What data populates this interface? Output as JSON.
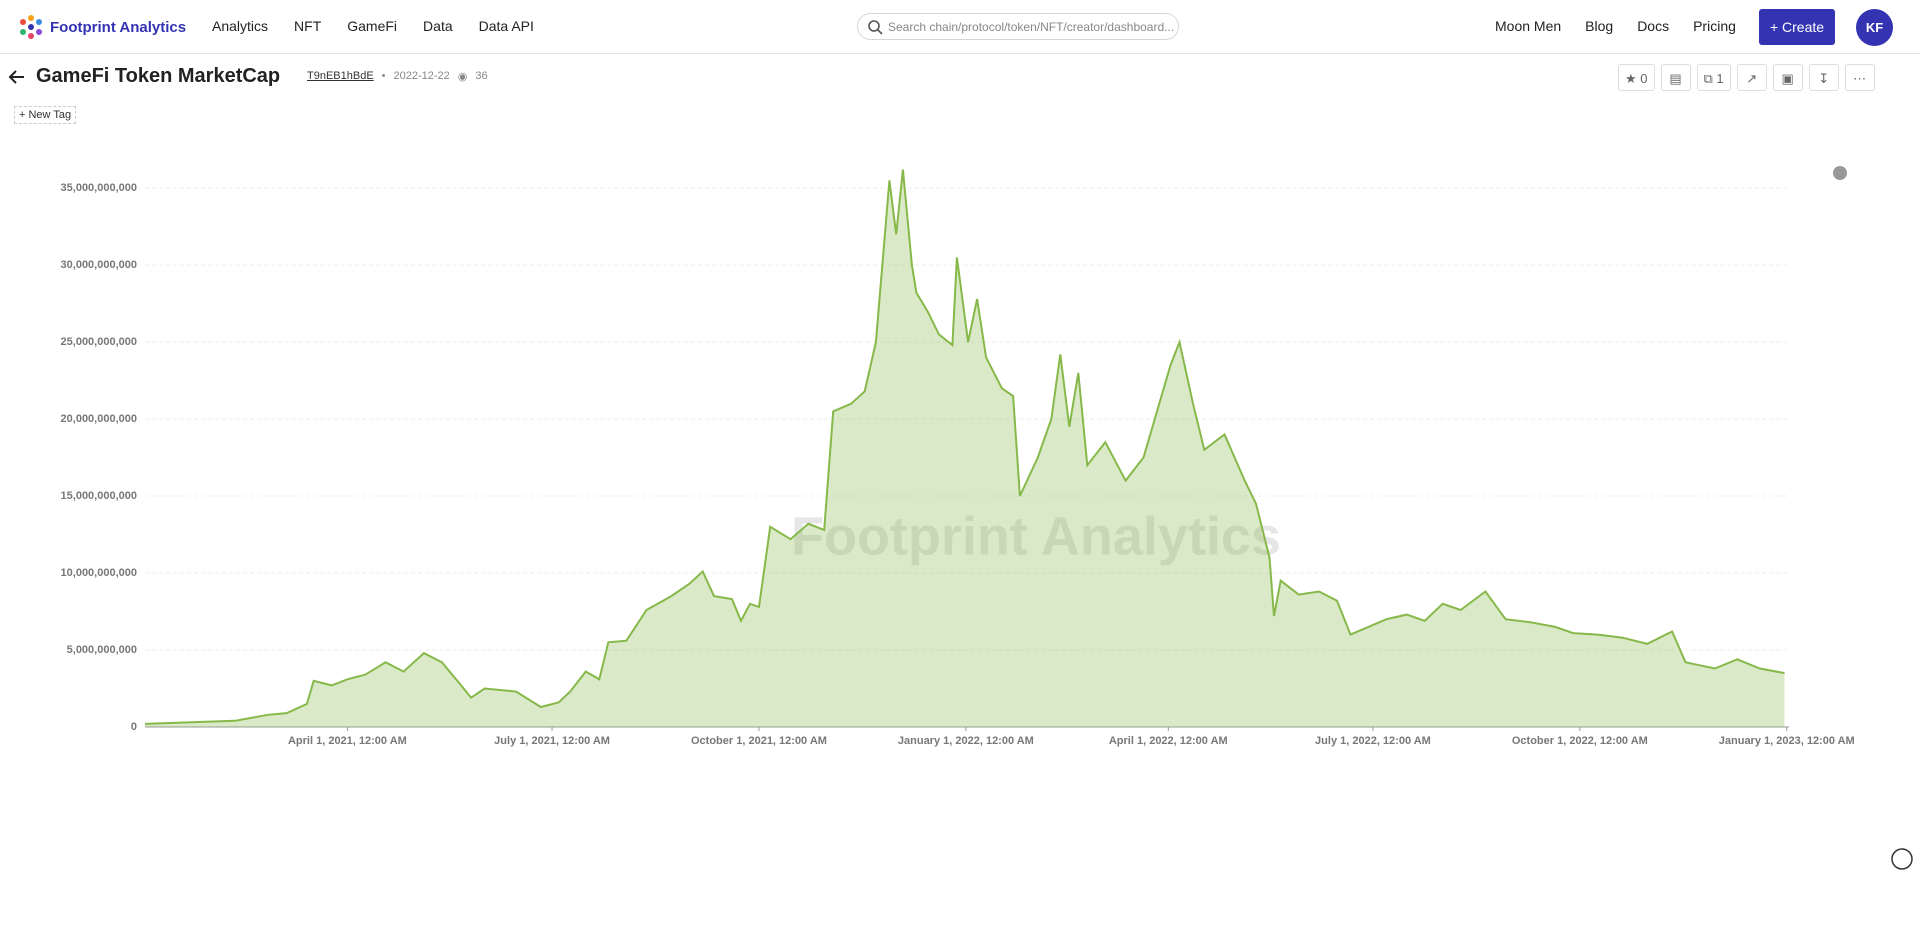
{
  "nav": {
    "brand": "Footprint Analytics",
    "links": [
      "Analytics",
      "NFT",
      "GameFi",
      "Data",
      "Data API"
    ],
    "search_placeholder": "Search chain/protocol/token/NFT/creator/dashboard...",
    "right_links": [
      "Moon Men",
      "Blog",
      "Docs",
      "Pricing"
    ],
    "create": "Create",
    "avatar": "KF"
  },
  "header": {
    "title": "GameFi Token MarketCap",
    "id": "T9nEB1hBdE",
    "date": "2022-12-22",
    "views": 36,
    "stars": 0,
    "copies": 1,
    "new_tag": "New Tag"
  },
  "chart_data": {
    "type": "area",
    "watermark": "Footprint Analytics",
    "color": "#86b84a",
    "x": [
      "2021-01-01",
      "2021-01-20",
      "2021-02-10",
      "2021-02-25",
      "2021-03-05",
      "2021-03-14",
      "2021-03-17",
      "2021-03-25",
      "2021-04-01",
      "2021-04-09",
      "2021-04-18",
      "2021-04-26",
      "2021-05-05",
      "2021-05-13",
      "2021-05-21",
      "2021-05-26",
      "2021-06-01",
      "2021-06-15",
      "2021-06-26",
      "2021-07-04",
      "2021-07-09",
      "2021-07-16",
      "2021-07-22",
      "2021-07-26",
      "2021-08-03",
      "2021-08-12",
      "2021-08-23",
      "2021-08-31",
      "2021-09-06",
      "2021-09-11",
      "2021-09-19",
      "2021-09-23",
      "2021-09-27",
      "2021-10-01",
      "2021-10-06",
      "2021-10-15",
      "2021-10-23",
      "2021-10-30",
      "2021-11-03",
      "2021-11-11",
      "2021-11-17",
      "2021-11-22",
      "2021-11-28",
      "2021-12-01",
      "2021-12-04",
      "2021-12-08",
      "2021-12-10",
      "2021-12-15",
      "2021-12-20",
      "2021-12-26",
      "2021-12-28",
      "2022-01-02",
      "2022-01-06",
      "2022-01-10",
      "2022-01-17",
      "2022-01-22",
      "2022-01-25",
      "2022-02-02",
      "2022-02-08",
      "2022-02-12",
      "2022-02-16",
      "2022-02-20",
      "2022-02-24",
      "2022-03-04",
      "2022-03-13",
      "2022-03-21",
      "2022-03-29",
      "2022-04-02",
      "2022-04-06",
      "2022-04-12",
      "2022-04-17",
      "2022-04-26",
      "2022-05-05",
      "2022-05-10",
      "2022-05-16",
      "2022-05-18",
      "2022-05-21",
      "2022-05-29",
      "2022-06-07",
      "2022-06-15",
      "2022-06-21",
      "2022-06-29",
      "2022-07-07",
      "2022-07-16",
      "2022-07-24",
      "2022-08-01",
      "2022-08-09",
      "2022-08-20",
      "2022-08-29",
      "2022-09-09",
      "2022-09-20",
      "2022-09-28",
      "2022-10-09",
      "2022-10-20",
      "2022-10-31",
      "2022-11-11",
      "2022-11-17",
      "2022-11-30",
      "2022-12-10",
      "2022-12-20",
      "2022-12-31"
    ],
    "values": [
      200000000,
      300000000,
      400000000,
      800000000,
      900000000,
      1500000000,
      3000000000,
      2700000000,
      3100000000,
      3400000000,
      4200000000,
      3600000000,
      4800000000,
      4200000000,
      2800000000,
      1900000000,
      2500000000,
      2300000000,
      1300000000,
      1600000000,
      2300000000,
      3600000000,
      3100000000,
      5500000000,
      5600000000,
      7600000000,
      8500000000,
      9300000000,
      10100000000,
      8500000000,
      8300000000,
      6900000000,
      8000000000,
      7800000000,
      13000000000,
      12200000000,
      13200000000,
      12800000000,
      20500000000,
      21000000000,
      21800000000,
      25000000000,
      35500000000,
      32000000000,
      36200000000,
      30000000000,
      28200000000,
      27000000000,
      25500000000,
      24800000000,
      30500000000,
      25000000000,
      27800000000,
      24000000000,
      22000000000,
      21500000000,
      15000000000,
      17500000000,
      20000000000,
      24200000000,
      19500000000,
      23000000000,
      17000000000,
      18500000000,
      16000000000,
      17500000000,
      21500000000,
      23500000000,
      25000000000,
      21000000000,
      18000000000,
      19000000000,
      16000000000,
      14500000000,
      11000000000,
      7200000000,
      9500000000,
      8600000000,
      8800000000,
      8200000000,
      6000000000,
      6500000000,
      7000000000,
      7300000000,
      6900000000,
      8000000000,
      7600000000,
      8800000000,
      7000000000,
      6800000000,
      6500000000,
      6100000000,
      6000000000,
      5800000000,
      5400000000,
      6200000000,
      4200000000,
      3800000000,
      4400000000,
      3800000000,
      3500000000
    ],
    "xlim": [
      "2021-01-01",
      "2023-01-02"
    ],
    "xticks": [
      {
        "value": "2021-04-01",
        "label": "April 1, 2021, 12:00 AM"
      },
      {
        "value": "2021-07-01",
        "label": "July 1, 2021, 12:00 AM"
      },
      {
        "value": "2021-10-01",
        "label": "October 1, 2021, 12:00 AM"
      },
      {
        "value": "2022-01-01",
        "label": "January 1, 2022, 12:00 AM"
      },
      {
        "value": "2022-04-01",
        "label": "April 1, 2022, 12:00 AM"
      },
      {
        "value": "2022-07-01",
        "label": "July 1, 2022, 12:00 AM"
      },
      {
        "value": "2022-10-01",
        "label": "October 1, 2022, 12:00 AM"
      },
      {
        "value": "2023-01-01",
        "label": "January 1, 2023, 12:00 AM"
      }
    ],
    "ylim": [
      0,
      36500000000
    ],
    "yticks": [
      0,
      {
        "value": 5000000000,
        "label": "5,000,000,000"
      },
      {
        "value": 10000000000,
        "label": "10,000,000,000"
      },
      {
        "value": 15000000000,
        "label": "15,000,000,000"
      },
      {
        "value": 20000000000,
        "label": "20,000,000,000"
      },
      {
        "value": 25000000000,
        "label": "25,000,000,000"
      },
      {
        "value": 30000000000,
        "label": "30,000,000,000"
      },
      {
        "value": 35000000000,
        "label": "35,000,000,000"
      }
    ],
    "grid": true
  }
}
